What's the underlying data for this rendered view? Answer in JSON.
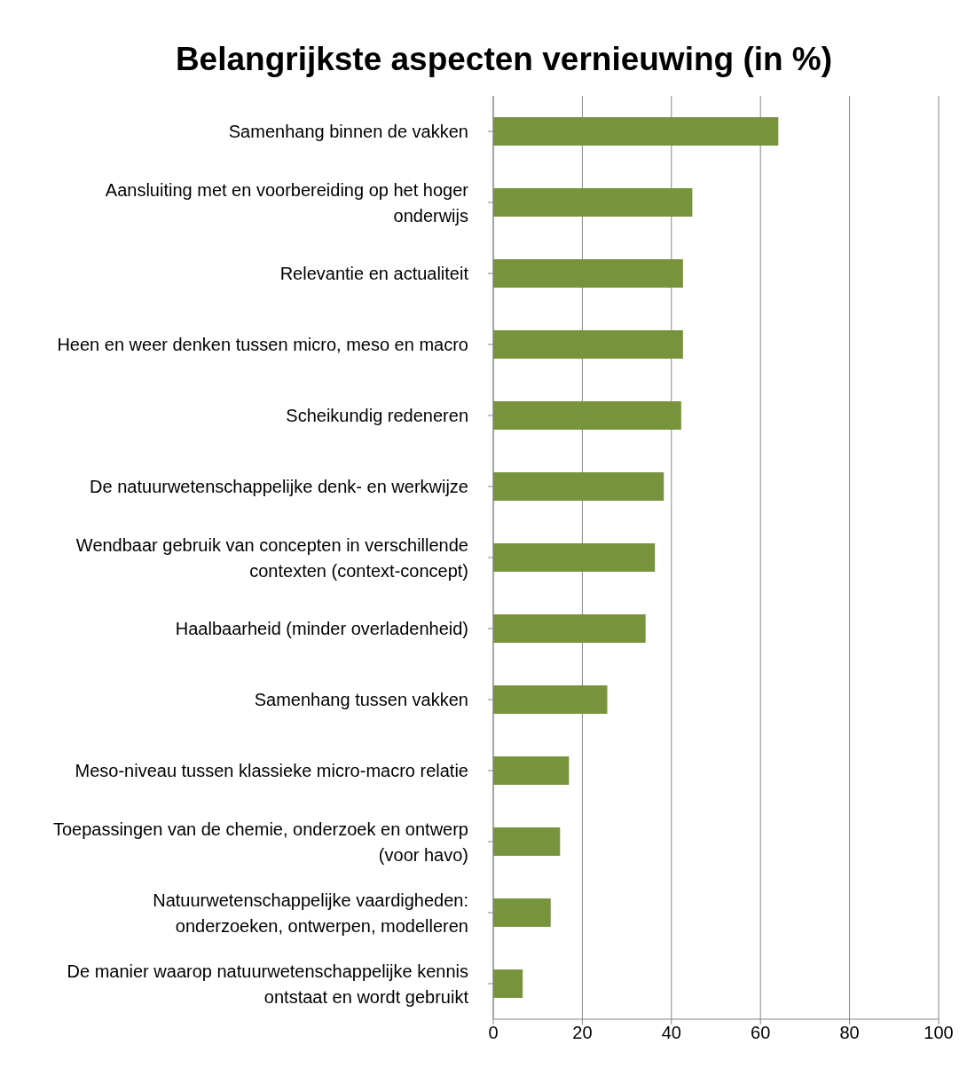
{
  "chart_data": {
    "type": "bar",
    "orientation": "horizontal",
    "title": "Belangrijkste aspecten vernieuwing (in %)",
    "categories": [
      "Samenhang binnen de vakken",
      "Aansluiting met en voorbereiding op het hoger onderwijs",
      "Relevantie en actualiteit",
      "Heen en weer denken tussen micro, meso en macro",
      "Scheikundig redeneren",
      "De natuurwetenschappelijke denk- en werkwijze",
      "Wendbaar gebruik van concepten in verschillende contexten (context-concept)",
      "Haalbaarheid (minder overladenheid)",
      "Samenhang tussen vakken",
      "Meso-niveau tussen klassieke micro-macro relatie",
      "Toepassingen van de chemie, onderzoek en ontwerp (voor havo)",
      "Natuurwetenschappelijke vaardigheden: onderzoeken, ontwerpen, modelleren",
      "De manier waarop natuurwetenschappelijke kennis ontstaat en wordt gebruikt"
    ],
    "values": [
      64,
      44.7,
      42.6,
      42.6,
      42.2,
      38.3,
      36.3,
      34.2,
      25.6,
      17,
      15,
      12.9,
      6.6
    ],
    "color": "#77933c",
    "xlim": [
      0,
      100
    ],
    "xticks": [
      0,
      20,
      40,
      60,
      80,
      100
    ],
    "grid": "x",
    "legend": false
  }
}
